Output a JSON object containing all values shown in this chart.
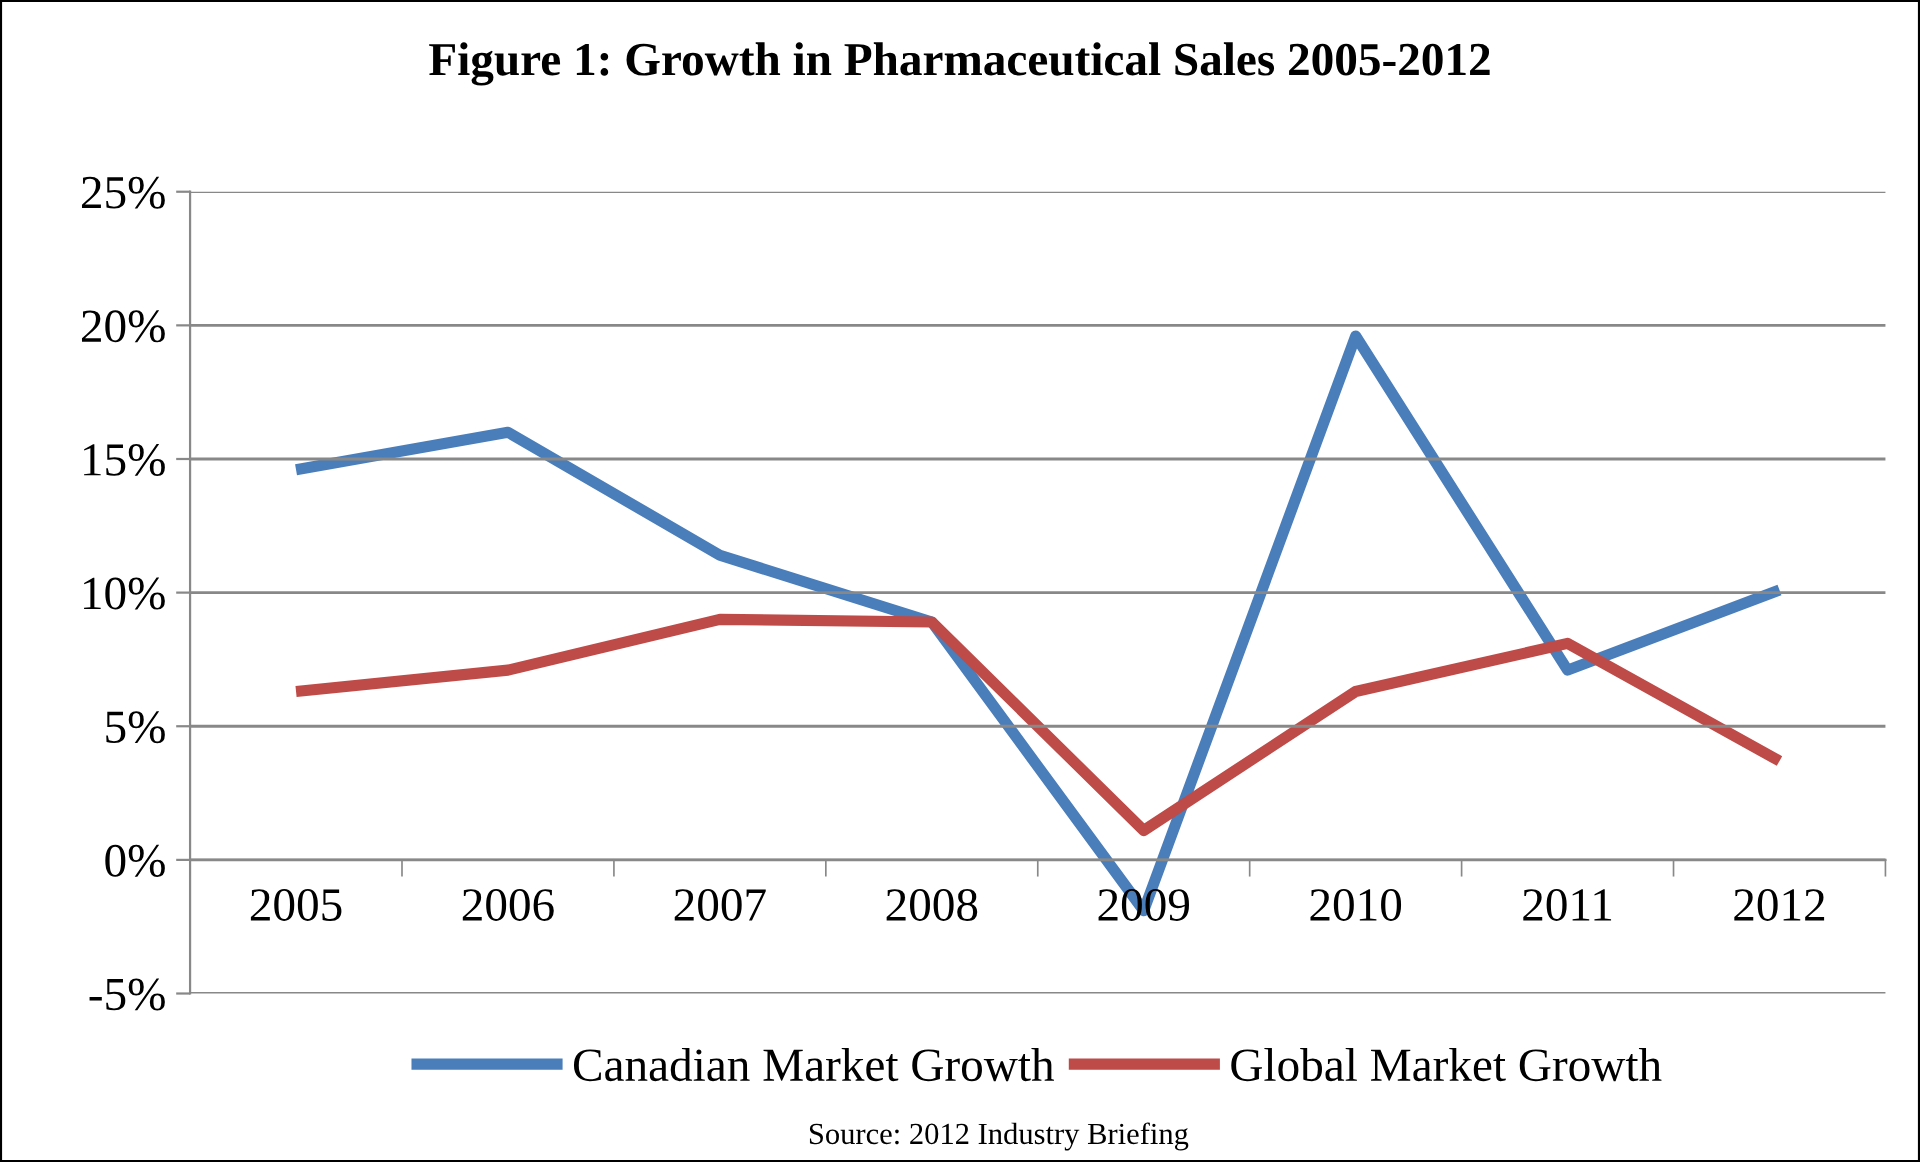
{
  "chart_data": {
    "type": "line",
    "title": "Figure 1: Growth in Pharmaceutical Sales 2005-2012",
    "categories": [
      "2005",
      "2006",
      "2007",
      "2008",
      "2009",
      "2010",
      "2011",
      "2012"
    ],
    "series": [
      {
        "name": "Canadian Market Growth",
        "color": "#4a7ebb",
        "values": [
          14.6,
          16.0,
          11.4,
          8.9,
          -1.9,
          19.6,
          7.1,
          10.1
        ]
      },
      {
        "name": "Global Market Growth",
        "color": "#be4b48",
        "values": [
          6.3,
          7.1,
          9.0,
          8.9,
          1.1,
          6.3,
          8.1,
          3.7
        ]
      }
    ],
    "ylim": [
      -5,
      25
    ],
    "yticks": [
      {
        "value": -5,
        "label": "-5%"
      },
      {
        "value": 0,
        "label": "0%"
      },
      {
        "value": 5,
        "label": "5%"
      },
      {
        "value": 10,
        "label": "10%"
      },
      {
        "value": 15,
        "label": "15%"
      },
      {
        "value": 20,
        "label": "20%"
      },
      {
        "value": 25,
        "label": "25%"
      }
    ],
    "grid": "y",
    "legend": "bottom",
    "marker": "none",
    "line_style": "solid",
    "annotations": [
      "Source: 2012 Industry Briefing"
    ]
  }
}
